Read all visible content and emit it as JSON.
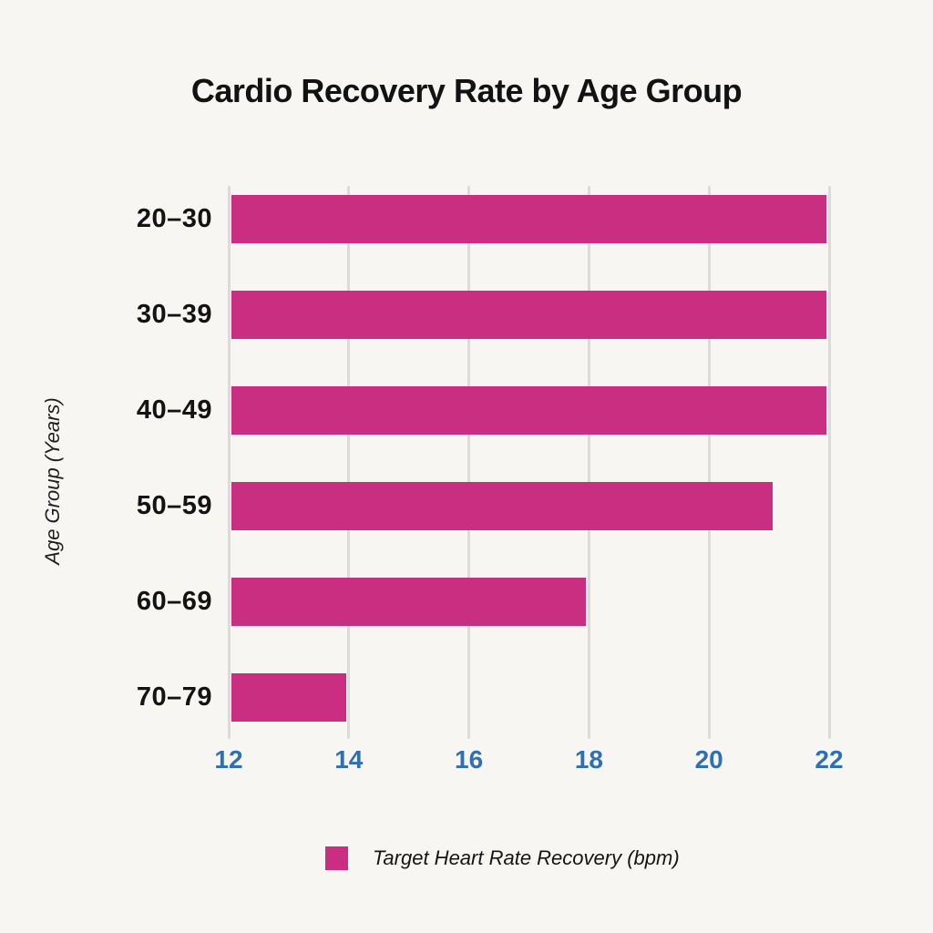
{
  "title": "Cardio Recovery Rate by Age Group",
  "colors": {
    "background": "#f7f6f3",
    "bar": "#ca2e80",
    "gridline": "#dcdbd8",
    "tick_label": "#2f6fb3",
    "text": "#131313"
  },
  "chart_data": {
    "type": "bar",
    "orientation": "horizontal",
    "title": "Cardio Recovery Rate by Age Group",
    "categories": [
      "20–30",
      "30–39",
      "40–49",
      "50–59",
      "60–69",
      "70–79"
    ],
    "values": [
      22,
      22,
      22,
      21.1,
      18,
      14
    ],
    "xlabel": "",
    "ylabel": "Age Group (Years)",
    "xlim": [
      12,
      22
    ],
    "xticks": [
      12,
      14,
      16,
      18,
      20,
      22
    ],
    "grid": true,
    "legend": {
      "label": "Target Heart Rate Recovery (bpm)",
      "position": "bottom"
    }
  }
}
